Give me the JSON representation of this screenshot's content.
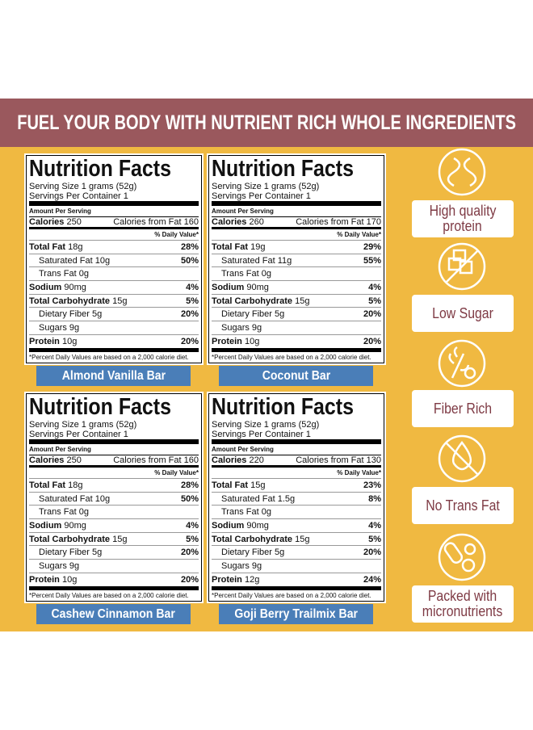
{
  "header": {
    "title": "FUEL YOUR BODY WITH NUTRIENT RICH WHOLE INGREDIENTS"
  },
  "panels": [
    {
      "title": "Nutrition Facts",
      "serving_size": "Serving Size 1 grams (52g)",
      "servings": "Servings Per Container 1",
      "amount_per_serving": "Amount Per Serving",
      "calories_label": "Calories",
      "calories": "250",
      "fat_calories_label": "Calories from Fat",
      "fat_calories": "160",
      "dv_header": "% Daily Value*",
      "rows": [
        {
          "label": "Total Fat",
          "amount": "18g",
          "dv": "28%",
          "subrows": [
            {
              "label": "Saturated Fat",
              "amount": "10g",
              "dv": "50%"
            },
            {
              "label": "Trans Fat",
              "amount": "0g"
            }
          ]
        },
        {
          "label": "Sodium",
          "amount": "90mg",
          "dv": "4%"
        },
        {
          "label": "Total Carbohydrate",
          "amount": "15g",
          "dv": "5%",
          "subrows": [
            {
              "label": "Dietary Fiber",
              "amount": "5g",
              "dv": "20%"
            },
            {
              "label": "Sugars",
              "amount": "9g"
            }
          ]
        },
        {
          "label": "Protein",
          "amount": "10g",
          "dv": "20%"
        }
      ],
      "footnote": "*Percent Daily Values are based on a 2,000 calorie diet.",
      "name": "Almond Vanilla Bar"
    },
    {
      "title": "Nutrition Facts",
      "serving_size": "Serving Size 1 grams (52g)",
      "servings": "Servings Per Container 1",
      "amount_per_serving": "Amount Per Serving",
      "calories_label": "Calories",
      "calories": "260",
      "fat_calories_label": "Calories from Fat",
      "fat_calories": "170",
      "dv_header": "% Daily Value*",
      "rows": [
        {
          "label": "Total Fat",
          "amount": "19g",
          "dv": "29%",
          "subrows": [
            {
              "label": "Saturated Fat",
              "amount": "11g",
              "dv": "55%"
            },
            {
              "label": "Trans Fat",
              "amount": "0g"
            }
          ]
        },
        {
          "label": "Sodium",
          "amount": "90mg",
          "dv": "4%"
        },
        {
          "label": "Total Carbohydrate",
          "amount": "15g",
          "dv": "5%",
          "subrows": [
            {
              "label": "Dietary Fiber",
              "amount": "5g",
              "dv": "20%"
            },
            {
              "label": "Sugars",
              "amount": "9g"
            }
          ]
        },
        {
          "label": "Protein",
          "amount": "10g",
          "dv": "20%"
        }
      ],
      "footnote": "*Percent Daily Values are based on a 2,000 calorie diet.",
      "name": "Coconut Bar"
    },
    {
      "title": "Nutrition Facts",
      "serving_size": "Serving Size 1 grams (52g)",
      "servings": "Servings Per Container 1",
      "amount_per_serving": "Amount Per Serving",
      "calories_label": "Calories",
      "calories": "250",
      "fat_calories_label": "Calories from Fat",
      "fat_calories": "160",
      "dv_header": "% Daily Value*",
      "rows": [
        {
          "label": "Total Fat",
          "amount": "18g",
          "dv": "28%",
          "subrows": [
            {
              "label": "Saturated Fat",
              "amount": "10g",
              "dv": "50%"
            },
            {
              "label": "Trans Fat",
              "amount": "0g"
            }
          ]
        },
        {
          "label": "Sodium",
          "amount": "90mg",
          "dv": "4%"
        },
        {
          "label": "Total Carbohydrate",
          "amount": "15g",
          "dv": "5%",
          "subrows": [
            {
              "label": "Dietary Fiber",
              "amount": "5g",
              "dv": "20%"
            },
            {
              "label": "Sugars",
              "amount": "9g"
            }
          ]
        },
        {
          "label": "Protein",
          "amount": "10g",
          "dv": "20%"
        }
      ],
      "footnote": "*Percent Daily Values are based on a 2,000 calorie diet.",
      "name": "Cashew Cinnamon Bar"
    },
    {
      "title": "Nutrition Facts",
      "serving_size": "Serving Size 1 grams (52g)",
      "servings": "Servings Per Container 1",
      "amount_per_serving": "Amount Per Serving",
      "calories_label": "Calories",
      "calories": "220",
      "fat_calories_label": "Calories from Fat",
      "fat_calories": "130",
      "dv_header": "% Daily Value*",
      "rows": [
        {
          "label": "Total Fat",
          "amount": "15g",
          "dv": "23%",
          "subrows": [
            {
              "label": "Saturated Fat",
              "amount": "1.5g",
              "dv": "8%"
            },
            {
              "label": "Trans Fat",
              "amount": "0g"
            }
          ]
        },
        {
          "label": "Sodium",
          "amount": "90mg",
          "dv": "4%"
        },
        {
          "label": "Total Carbohydrate",
          "amount": "15g",
          "dv": "5%",
          "subrows": [
            {
              "label": "Dietary Fiber",
              "amount": "5g",
              "dv": "20%"
            },
            {
              "label": "Sugars",
              "amount": "9g"
            }
          ]
        },
        {
          "label": "Protein",
          "amount": "12g",
          "dv": "24%"
        }
      ],
      "footnote": "*Percent Daily Values are based on a 2,000 calorie diet.",
      "name": "Goji Berry Trailmix Bar"
    }
  ],
  "features": [
    {
      "lines": [
        "High quality",
        "protein"
      ]
    },
    {
      "lines": [
        "Low Sugar"
      ]
    },
    {
      "lines": [
        "Fiber Rich"
      ]
    },
    {
      "lines": [
        "No Trans Fat"
      ]
    },
    {
      "lines": [
        "Packed with",
        "micronutrients"
      ]
    }
  ]
}
